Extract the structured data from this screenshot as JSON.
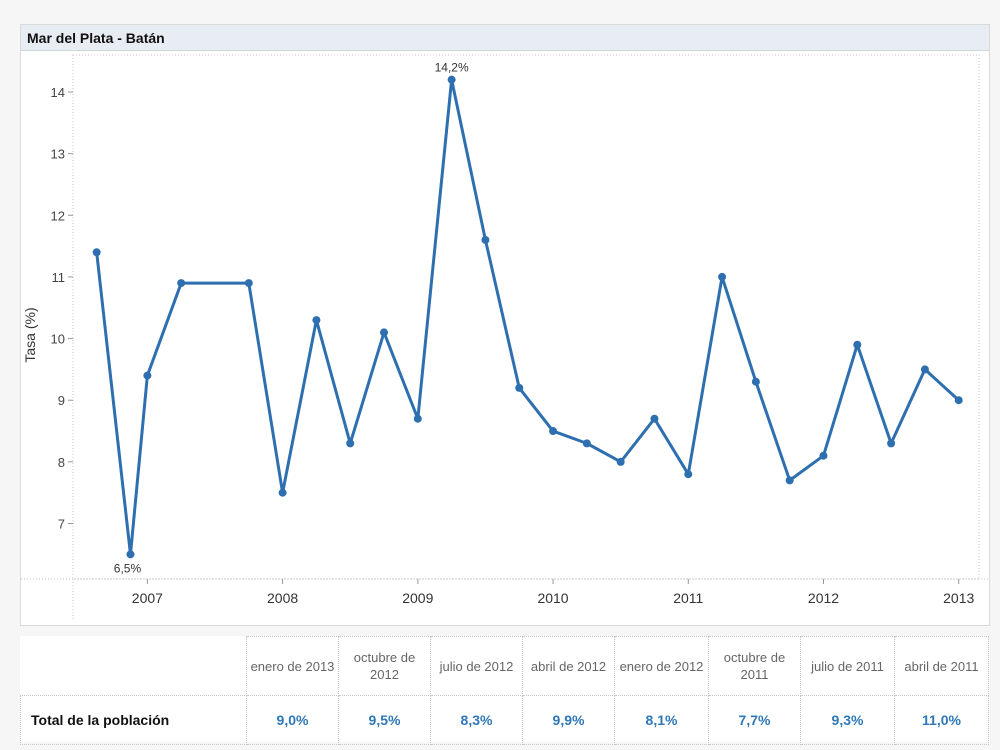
{
  "panel": {
    "title": "Mar del Plata - Batán"
  },
  "chart_data": {
    "type": "line",
    "title": "Mar del Plata - Batán",
    "ylabel": "Tasa (%)",
    "xlabel": "",
    "ylim": [
      6.1,
      14.6
    ],
    "yticks": [
      7,
      8,
      9,
      10,
      11,
      12,
      13,
      14
    ],
    "xlim": [
      2006.45,
      2013.15
    ],
    "xticks": [
      2007,
      2008,
      2009,
      2010,
      2011,
      2012,
      2013
    ],
    "grid": false,
    "color": "#2e6fb0",
    "series": [
      {
        "x": [
          2006.625,
          2006.875,
          2007.0,
          2007.25,
          2007.75,
          2008.0,
          2008.25,
          2008.5,
          2008.75,
          2009.0,
          2009.25,
          2009.5,
          2009.75,
          2010.0,
          2010.25,
          2010.5,
          2010.75,
          2011.0,
          2011.25,
          2011.5,
          2011.75,
          2012.0,
          2012.25,
          2012.5,
          2012.75,
          2013.0
        ],
        "values": [
          11.4,
          6.5,
          9.4,
          10.9,
          10.9,
          7.5,
          10.3,
          8.3,
          10.1,
          8.7,
          14.2,
          11.6,
          9.2,
          8.5,
          8.3,
          8.0,
          8.7,
          7.8,
          11.0,
          9.3,
          7.7,
          8.1,
          9.9,
          8.3,
          9.5,
          9.0
        ]
      }
    ],
    "annotations": [
      {
        "x": 2009.25,
        "y": 14.2,
        "text": "14,2%"
      },
      {
        "x": 2006.875,
        "y": 6.5,
        "text": "6,5%"
      }
    ]
  },
  "table": {
    "columns": [
      "enero de 2013",
      "octubre de 2012",
      "julio de 2012",
      "abril de 2012",
      "enero de 2012",
      "octubre de 2011",
      "julio de 2011",
      "abril de 2011"
    ],
    "row_label": "Total de la población",
    "values": [
      "9,0%",
      "9,5%",
      "8,3%",
      "9,9%",
      "8,1%",
      "7,7%",
      "9,3%",
      "11,0%"
    ]
  }
}
